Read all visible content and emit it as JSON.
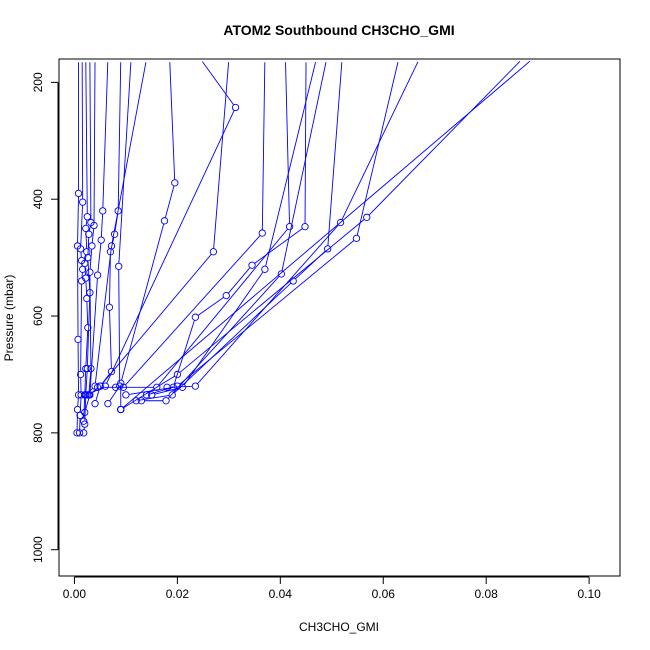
{
  "chart_data": {
    "type": "line",
    "title": "ATOM2 Southbound CH3CHO_GMI",
    "xlabel": "CH3CHO_GMI",
    "ylabel": "Pressure (mbar)",
    "xlim": [
      -0.003,
      0.106
    ],
    "ylim": [
      1045,
      160
    ],
    "y_reversed": true,
    "x_ticks": [
      0.0,
      0.02,
      0.04,
      0.06,
      0.08,
      0.1
    ],
    "x_tick_labels": [
      "0.00",
      "0.02",
      "0.04",
      "0.06",
      "0.08",
      "0.10"
    ],
    "y_ticks": [
      200,
      400,
      600,
      800,
      1000
    ],
    "y_tick_labels": [
      "200",
      "400",
      "600",
      "800",
      "1000"
    ],
    "grid": false,
    "legend": "none",
    "series_color": "#0000ff",
    "marker": "open-circle",
    "series": [
      {
        "points": [
          [
            0.0008,
            160
          ],
          [
            0.0008,
            390
          ],
          [
            0.0006,
            480
          ],
          [
            0.0007,
            640
          ],
          [
            0.0008,
            735
          ],
          [
            0.0006,
            760
          ],
          [
            0.0005,
            800
          ]
        ]
      },
      {
        "points": [
          [
            0.0015,
            160
          ],
          [
            0.0016,
            405
          ],
          [
            0.0012,
            485
          ],
          [
            0.0014,
            505
          ],
          [
            0.0016,
            520
          ],
          [
            0.0014,
            540
          ],
          [
            0.0012,
            700
          ],
          [
            0.0013,
            735
          ],
          [
            0.0011,
            770
          ],
          [
            0.001,
            800
          ]
        ]
      },
      {
        "points": [
          [
            0.0022,
            160
          ],
          [
            0.0025,
            430
          ],
          [
            0.0022,
            450
          ],
          [
            0.0024,
            490
          ],
          [
            0.002,
            510
          ],
          [
            0.0022,
            535
          ],
          [
            0.0024,
            570
          ],
          [
            0.0026,
            620
          ],
          [
            0.0022,
            690
          ],
          [
            0.002,
            735
          ],
          [
            0.0018,
            780
          ]
        ]
      },
      {
        "points": [
          [
            0.003,
            160
          ],
          [
            0.0032,
            440
          ],
          [
            0.0028,
            460
          ],
          [
            0.0026,
            500
          ],
          [
            0.003,
            560
          ],
          [
            0.0025,
            690
          ],
          [
            0.0022,
            735
          ],
          [
            0.002,
            785
          ],
          [
            0.0018,
            800
          ]
        ]
      },
      {
        "points": [
          [
            0.004,
            160
          ],
          [
            0.0038,
            445
          ],
          [
            0.0034,
            480
          ],
          [
            0.003,
            525
          ],
          [
            0.0032,
            690
          ],
          [
            0.0028,
            735
          ]
        ]
      },
      {
        "points": [
          [
            0.0065,
            160
          ],
          [
            0.0055,
            420
          ],
          [
            0.0052,
            470
          ],
          [
            0.0045,
            530
          ],
          [
            0.003,
            735
          ],
          [
            0.002,
            765
          ]
        ]
      },
      {
        "points": [
          [
            0.009,
            160
          ],
          [
            0.0085,
            420
          ],
          [
            0.0078,
            460
          ],
          [
            0.007,
            490
          ],
          [
            0.0068,
            585
          ],
          [
            0.0072,
            695
          ],
          [
            0.005,
            720
          ],
          [
            0.004,
            750
          ]
        ]
      },
      {
        "points": [
          [
            0.011,
            160
          ],
          [
            0.0086,
            515
          ],
          [
            0.0088,
            720
          ],
          [
            0.0065,
            750
          ]
        ]
      },
      {
        "points": [
          [
            0.014,
            160
          ],
          [
            0.0072,
            480
          ],
          [
            0.004,
            720
          ],
          [
            0.0022,
            735
          ]
        ]
      },
      {
        "points": [
          [
            0.0185,
            160
          ],
          [
            0.0195,
            372
          ],
          [
            0.0175,
            437
          ],
          [
            0.009,
            715
          ],
          [
            0.009,
            760
          ]
        ]
      },
      {
        "points": [
          [
            0.0245,
            160
          ],
          [
            0.0313,
            243
          ],
          [
            0.006,
            720
          ],
          [
            0.0025,
            735
          ]
        ]
      },
      {
        "points": [
          [
            0.03,
            160
          ],
          [
            0.027,
            490
          ],
          [
            0.005,
            720
          ],
          [
            0.0028,
            735
          ]
        ]
      },
      {
        "points": [
          [
            0.037,
            160
          ],
          [
            0.0365,
            458
          ],
          [
            0.0095,
            722
          ],
          [
            0.0045,
            722
          ]
        ]
      },
      {
        "points": [
          [
            0.041,
            160
          ],
          [
            0.0418,
            447
          ],
          [
            0.016,
            722
          ],
          [
            0.008,
            722
          ]
        ]
      },
      {
        "points": [
          [
            0.045,
            160
          ],
          [
            0.0448,
            447
          ],
          [
            0.0345,
            513
          ],
          [
            0.0295,
            565
          ],
          [
            0.0235,
            602
          ],
          [
            0.0192,
            722
          ],
          [
            0.01,
            735
          ]
        ]
      },
      {
        "points": [
          [
            0.047,
            160
          ],
          [
            0.037,
            520
          ],
          [
            0.021,
            722
          ],
          [
            0.015,
            735
          ]
        ]
      },
      {
        "points": [
          [
            0.049,
            160
          ],
          [
            0.0402,
            528
          ],
          [
            0.0178,
            745
          ],
          [
            0.013,
            745
          ]
        ]
      },
      {
        "points": [
          [
            0.052,
            160
          ],
          [
            0.0492,
            485
          ],
          [
            0.0425,
            540
          ],
          [
            0.019,
            735
          ],
          [
            0.012,
            745
          ]
        ]
      },
      {
        "points": [
          [
            0.063,
            160
          ],
          [
            0.0548,
            467
          ],
          [
            0.02,
            720
          ],
          [
            0.014,
            735
          ]
        ]
      },
      {
        "points": [
          [
            0.067,
            160
          ],
          [
            0.0517,
            440
          ],
          [
            0.0235,
            720
          ],
          [
            0.018,
            722
          ]
        ]
      },
      {
        "points": [
          [
            0.087,
            160
          ],
          [
            0.0568,
            431
          ],
          [
            0.02,
            700
          ],
          [
            0.009,
            760
          ]
        ]
      },
      {
        "points": [
          [
            0.089,
            160
          ],
          [
            0.009,
            760
          ]
        ]
      }
    ]
  }
}
